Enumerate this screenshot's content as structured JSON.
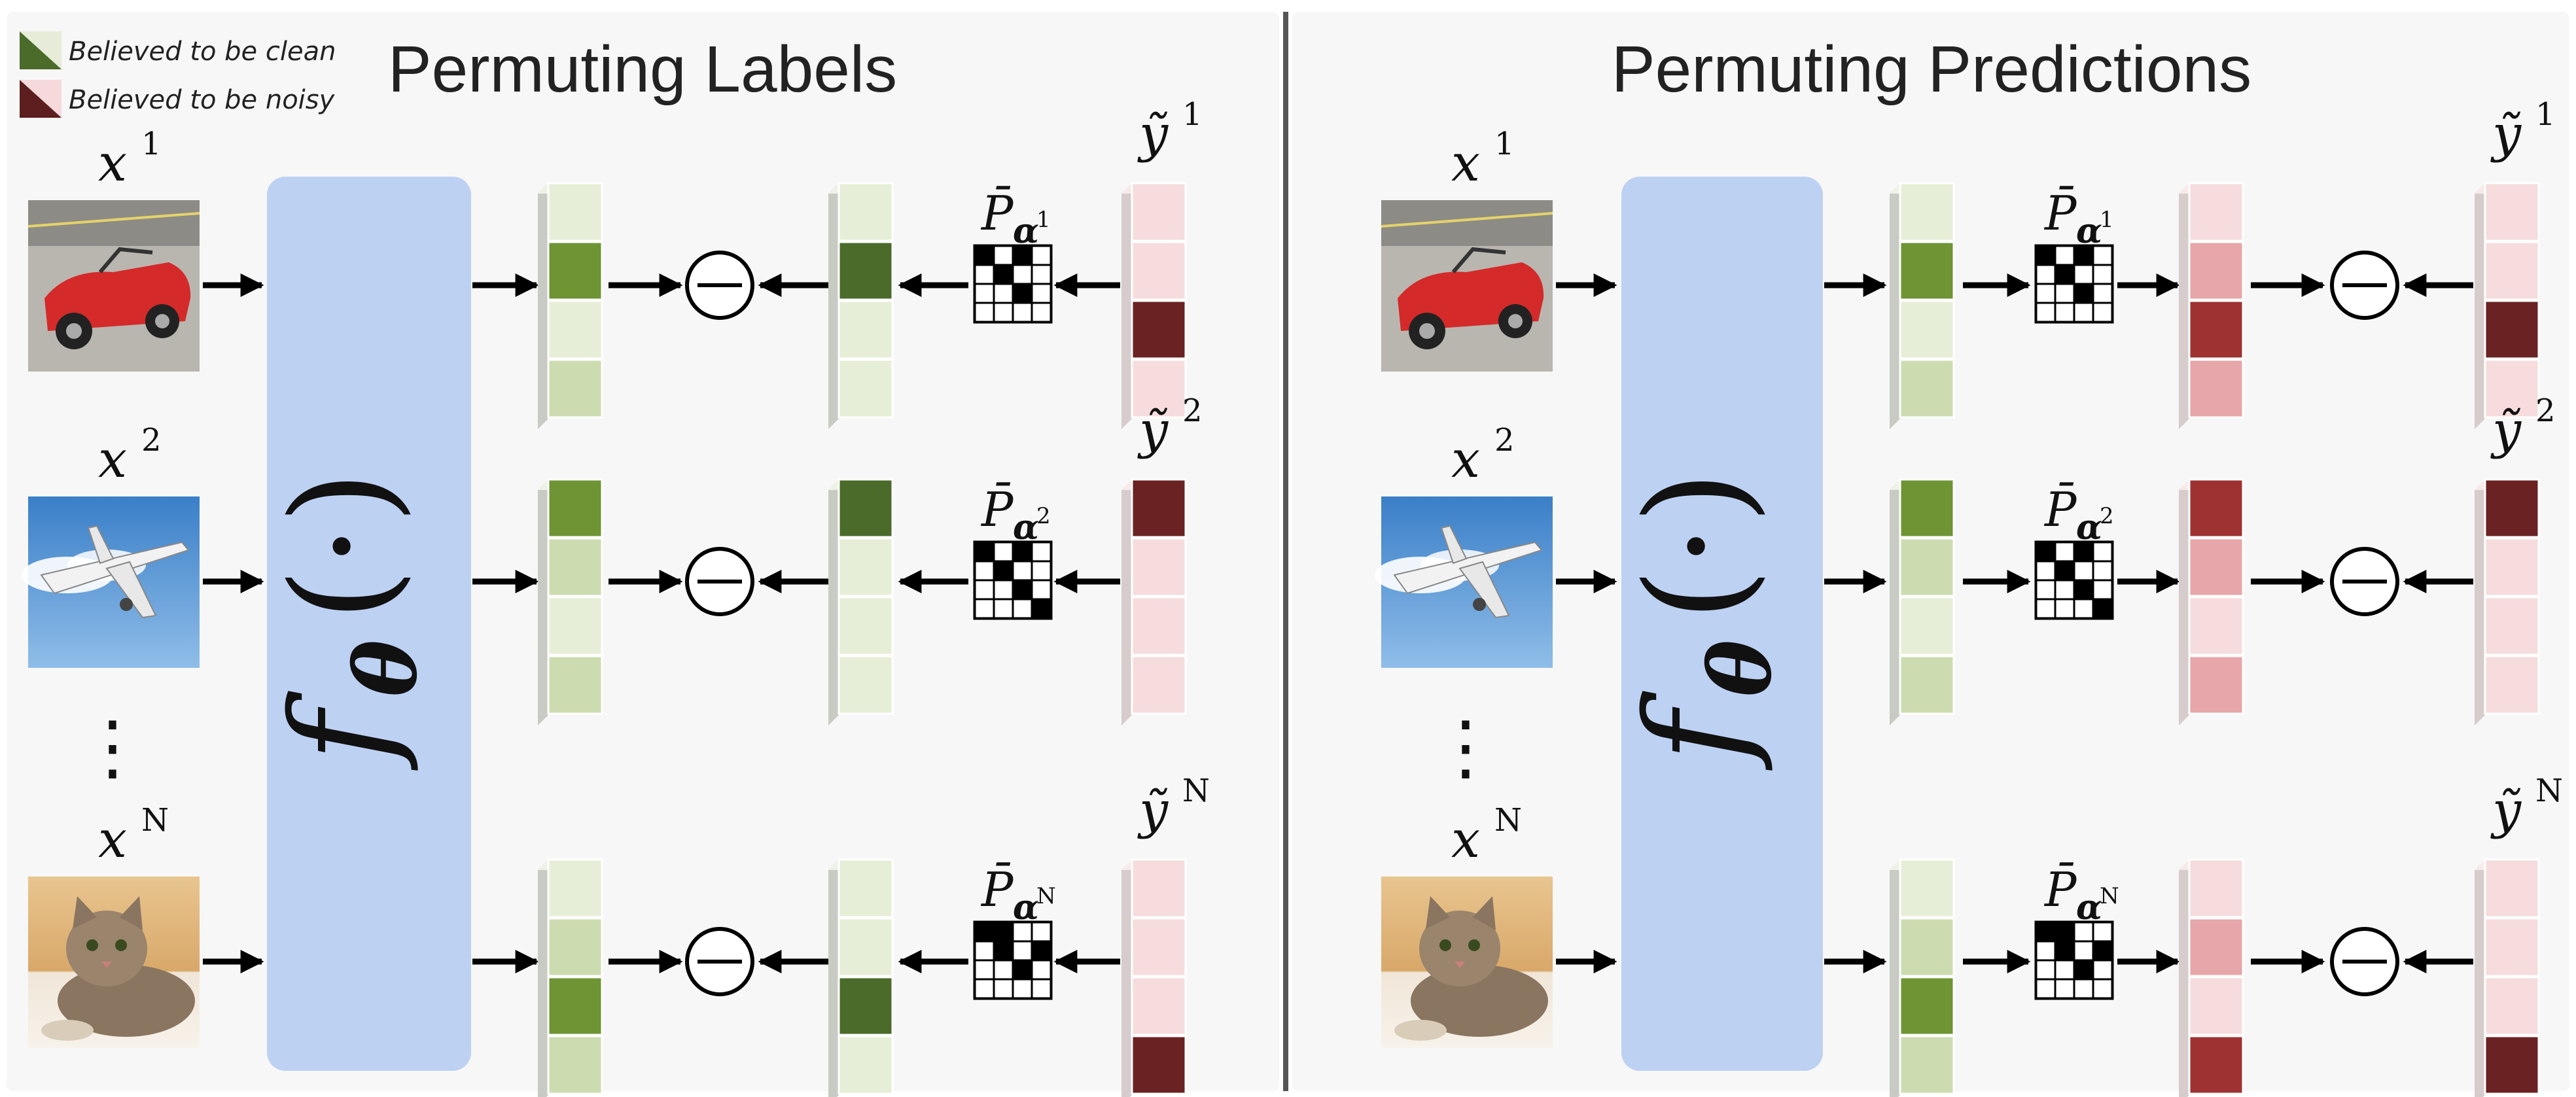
{
  "legend": {
    "clean_label": "Believed to be clean",
    "noisy_label": "Believed to be noisy",
    "clean_color": "#4a6b2a",
    "noisy_color": "#5c1e1e"
  },
  "panels": [
    {
      "title": "Permuting Labels",
      "model": {
        "f": "f",
        "theta": "θ",
        "arg": "(·)"
      },
      "rows": [
        {
          "x_base": "x",
          "x_sup": "1",
          "image": "car-image",
          "y_base": "ỹ",
          "y_sup": "1",
          "p_base": "P̄",
          "p_sub": "α",
          "p_subsup": "1",
          "pred_active": 1,
          "perm_active": 1,
          "label_active": 2,
          "matrix": [
            [
              1,
              0,
              1,
              0
            ],
            [
              0,
              1,
              0,
              0
            ],
            [
              0,
              0,
              1,
              0
            ],
            [
              0,
              0,
              0,
              0
            ]
          ]
        },
        {
          "x_base": "x",
          "x_sup": "2",
          "image": "airplane-image",
          "y_base": "ỹ",
          "y_sup": "2",
          "p_base": "P̄",
          "p_sub": "α",
          "p_subsup": "2",
          "pred_active": 0,
          "perm_active": 0,
          "label_active": 0,
          "matrix": [
            [
              1,
              0,
              1,
              0
            ],
            [
              0,
              1,
              0,
              0
            ],
            [
              0,
              0,
              1,
              0
            ],
            [
              0,
              0,
              0,
              1
            ]
          ]
        },
        {
          "x_base": "x",
          "x_sup": "N",
          "image": "cat-image",
          "y_base": "ỹ",
          "y_sup": "N",
          "p_base": "P̄",
          "p_sub": "α",
          "p_subsup": "N",
          "pred_active": 2,
          "perm_active": 2,
          "label_active": 3,
          "matrix": [
            [
              1,
              1,
              0,
              0
            ],
            [
              0,
              1,
              0,
              1
            ],
            [
              0,
              0,
              1,
              0
            ],
            [
              0,
              0,
              0,
              0
            ]
          ]
        }
      ],
      "dots": "⋮"
    },
    {
      "title": "Permuting Predictions",
      "model": {
        "f": "f",
        "theta": "θ",
        "arg": "(·)"
      },
      "rows": [
        {
          "x_base": "x",
          "x_sup": "1",
          "image": "car-image",
          "y_base": "ỹ",
          "y_sup": "1",
          "p_base": "P̄",
          "p_sub": "α",
          "p_subsup": "1",
          "pred_active": 1,
          "perm_active": 2,
          "label_active": 2,
          "matrix": [
            [
              1,
              0,
              1,
              0
            ],
            [
              0,
              1,
              0,
              0
            ],
            [
              0,
              0,
              1,
              0
            ],
            [
              0,
              0,
              0,
              0
            ]
          ]
        },
        {
          "x_base": "x",
          "x_sup": "2",
          "image": "airplane-image",
          "y_base": "ỹ",
          "y_sup": "2",
          "p_base": "P̄",
          "p_sub": "α",
          "p_subsup": "2",
          "pred_active": 0,
          "perm_active": 0,
          "label_active": 0,
          "matrix": [
            [
              1,
              0,
              1,
              0
            ],
            [
              0,
              1,
              0,
              0
            ],
            [
              0,
              0,
              1,
              0
            ],
            [
              0,
              0,
              0,
              1
            ]
          ]
        },
        {
          "x_base": "x",
          "x_sup": "N",
          "image": "cat-image",
          "y_base": "ỹ",
          "y_sup": "N",
          "p_base": "P̄",
          "p_sub": "α",
          "p_subsup": "N",
          "pred_active": 2,
          "perm_active": 3,
          "label_active": 3,
          "matrix": [
            [
              1,
              1,
              0,
              0
            ],
            [
              0,
              1,
              0,
              1
            ],
            [
              0,
              0,
              1,
              0
            ],
            [
              0,
              0,
              0,
              0
            ]
          ]
        }
      ],
      "dots": "⋮"
    }
  ]
}
